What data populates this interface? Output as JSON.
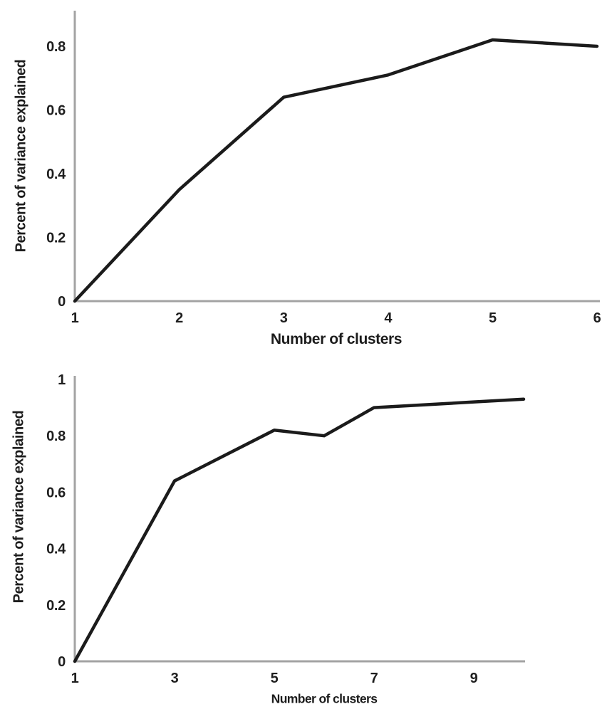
{
  "figure": {
    "background": "#ffffff",
    "line_color": "#1b1b1b",
    "axis_color": "#a3a3a3",
    "text_color": "#1f1f1f"
  },
  "chart_data": [
    {
      "id": "top-scree-plot",
      "type": "line",
      "title": "",
      "xlabel": "Number of clusters",
      "ylabel": "Percent of variance explained",
      "x": [
        1,
        2,
        3,
        4,
        5,
        6
      ],
      "y": [
        0,
        0.35,
        0.64,
        0.71,
        0.82,
        0.8
      ],
      "xticks": [
        1,
        2,
        3,
        4,
        5,
        6
      ],
      "xtick_labels": [
        "1",
        "2",
        "3",
        "4",
        "5",
        "6"
      ],
      "yticks": [
        0,
        0.2,
        0.4,
        0.6,
        0.8
      ],
      "ytick_labels": [
        "0",
        "0.2",
        "0.4",
        "0.6",
        "0.8"
      ],
      "xlim": [
        1,
        6
      ],
      "ylim": [
        0,
        0.91
      ],
      "grid": false,
      "legend": null
    },
    {
      "id": "bottom-scree-plot",
      "type": "line",
      "title": "",
      "xlabel": "Number of clusters",
      "ylabel": "Percent of variance explained",
      "x": [
        1,
        3,
        5,
        6,
        7,
        9,
        10
      ],
      "y": [
        0,
        0.64,
        0.82,
        0.8,
        0.9,
        0.92,
        0.93
      ],
      "xticks": [
        1,
        3,
        5,
        7,
        9
      ],
      "xtick_labels": [
        "1",
        "3",
        "5",
        "7",
        "9"
      ],
      "yticks": [
        0,
        0.2,
        0.4,
        0.6,
        0.8,
        1
      ],
      "ytick_labels": [
        "0",
        "0.2",
        "0.4",
        "0.6",
        "0.8",
        "1"
      ],
      "xlim": [
        1,
        10
      ],
      "ylim": [
        0,
        1.01
      ],
      "grid": false,
      "legend": null
    }
  ]
}
